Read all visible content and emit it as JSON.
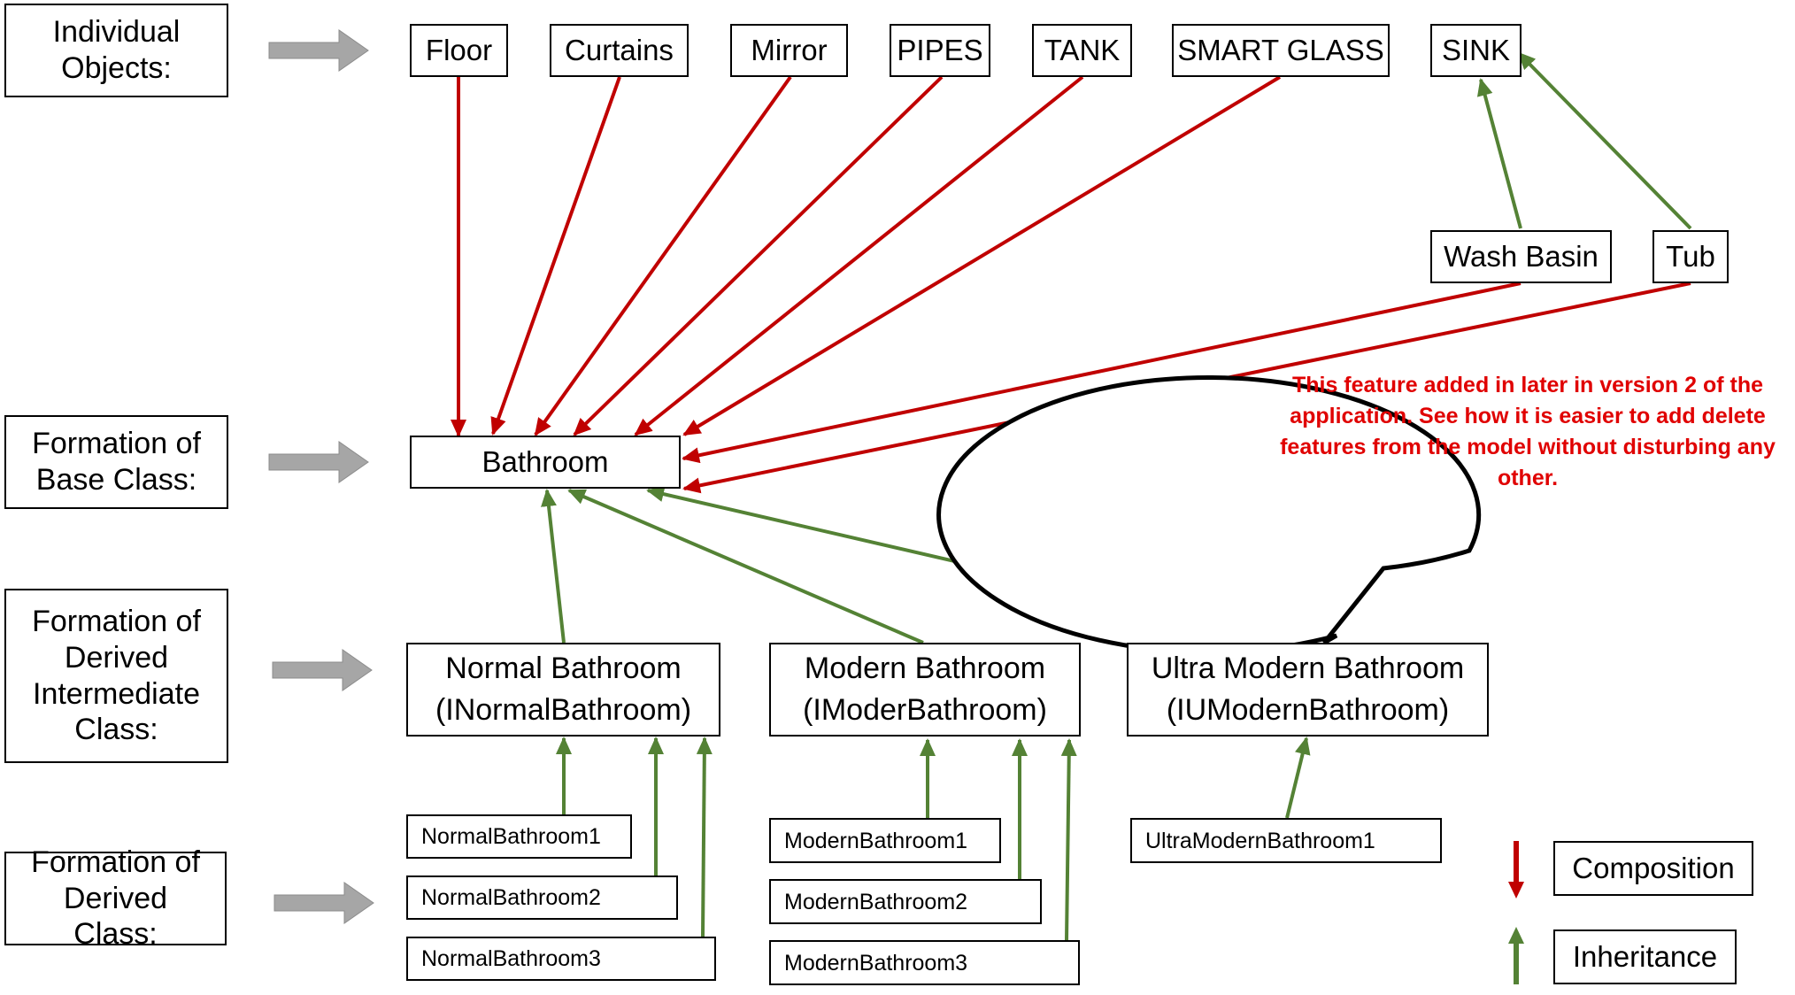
{
  "levels": {
    "individual": "Individual Objects:",
    "base": "Formation of Base Class:",
    "intermediate": "Formation of Derived Intermediate Class:",
    "derived": "Formation of Derived Class:"
  },
  "objects": {
    "floor": "Floor",
    "curtains": "Curtains",
    "mirror": "Mirror",
    "pipes": "PIPES",
    "tank": "TANK",
    "smart_glass": "SMART GLASS",
    "sink": "SINK",
    "wash_basin": "Wash Basin",
    "tub": "Tub"
  },
  "base_class": "Bathroom",
  "intermediate": {
    "normal": {
      "line1": "Normal Bathroom",
      "line2": "(INormalBathroom)"
    },
    "modern": {
      "line1": "Modern Bathroom",
      "line2": "(IModerBathroom)"
    },
    "ultra": {
      "line1": "Ultra Modern Bathroom",
      "line2": "(IUModernBathroom)"
    }
  },
  "derived": {
    "normal": [
      "NormalBathroom1",
      "NormalBathroom2",
      "NormalBathroom3"
    ],
    "modern": [
      "ModernBathroom1",
      "ModernBathroom2",
      "ModernBathroom3"
    ],
    "ultra": [
      "UltraModernBathroom1"
    ]
  },
  "callout": "This feature added in later in version 2 of the application. See how it is easier to add delete features from the model without disturbing any other.",
  "legend": {
    "composition": "Composition",
    "inheritance": "Inheritance"
  },
  "colors": {
    "composition": "#c00000",
    "inheritance": "#548235",
    "callout_text": "#e00000",
    "level_arrow": "#a6a6a6"
  }
}
